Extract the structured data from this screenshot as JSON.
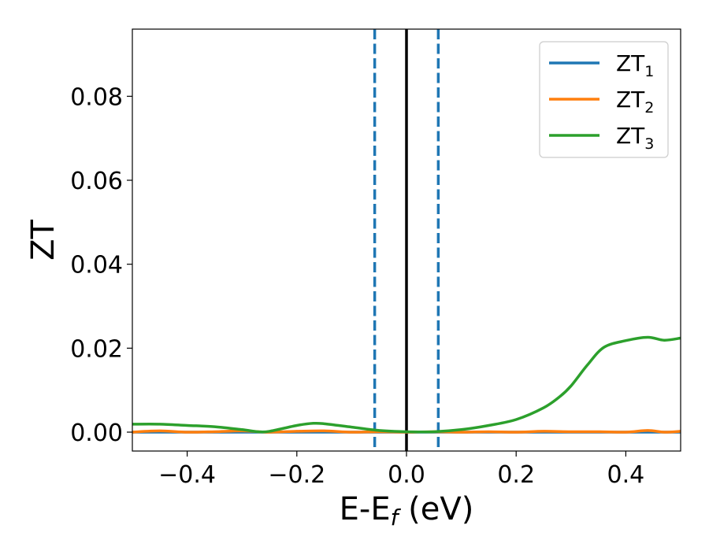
{
  "chart_data": {
    "type": "line",
    "xlabel": "E-E",
    "xlabel_sub": "f",
    "xlabel_unit": " (eV)",
    "ylabel": "ZT",
    "xlim": [
      -0.5,
      0.5
    ],
    "ylim": [
      -0.0045,
      0.096
    ],
    "x_ticks": [
      -0.4,
      -0.2,
      0.0,
      0.2,
      0.4
    ],
    "x_tick_labels": [
      "−0.4",
      "−0.2",
      "0.0",
      "0.2",
      "0.4"
    ],
    "y_ticks": [
      0.0,
      0.02,
      0.04,
      0.06,
      0.08
    ],
    "y_tick_labels": [
      "0.00",
      "0.02",
      "0.04",
      "0.06",
      "0.08"
    ],
    "grid": false,
    "legend_position": "top-right",
    "series": [
      {
        "name": "ZT",
        "sub": "1",
        "color": "#1f77b4",
        "x": [
          -0.5,
          0.5
        ],
        "y": [
          0.0,
          0.0
        ]
      },
      {
        "name": "ZT",
        "sub": "2",
        "color": "#ff7f0e",
        "x": [
          -0.5,
          -0.45,
          -0.4,
          -0.35,
          -0.3,
          -0.25,
          -0.2,
          -0.15,
          -0.1,
          -0.05,
          0.0,
          0.05,
          0.1,
          0.15,
          0.2,
          0.25,
          0.3,
          0.35,
          0.4,
          0.44,
          0.47,
          0.5
        ],
        "y": [
          0.0,
          0.0003,
          0.0,
          0.0001,
          0.0003,
          0.0,
          0.0002,
          0.0003,
          0.0,
          0.0001,
          0.0,
          0.0001,
          0.0,
          0.0001,
          0.0,
          0.0002,
          0.0001,
          0.0001,
          0.0,
          0.0004,
          0.0,
          0.0002
        ]
      },
      {
        "name": "ZT",
        "sub": "3",
        "color": "#2ca02c",
        "x": [
          -0.5,
          -0.45,
          -0.4,
          -0.35,
          -0.3,
          -0.27,
          -0.25,
          -0.2,
          -0.17,
          -0.15,
          -0.1,
          -0.05,
          0.0,
          0.05,
          0.1,
          0.15,
          0.2,
          0.25,
          0.28,
          0.3,
          0.33,
          0.36,
          0.4,
          0.44,
          0.47,
          0.5
        ],
        "y": [
          0.0019,
          0.0019,
          0.0016,
          0.0013,
          0.0006,
          0.0001,
          0.0002,
          0.0016,
          0.0021,
          0.002,
          0.0012,
          0.0004,
          0.0001,
          0.0001,
          0.0006,
          0.0016,
          0.003,
          0.0058,
          0.0085,
          0.011,
          0.016,
          0.0202,
          0.0218,
          0.0226,
          0.0219,
          0.0224
        ]
      }
    ],
    "vertical_lines": [
      {
        "x": -0.058,
        "style": "dashed",
        "color": "#1f77b4"
      },
      {
        "x": 0.0,
        "style": "solid",
        "color": "#000000"
      },
      {
        "x": 0.058,
        "style": "dashed",
        "color": "#1f77b4"
      }
    ]
  }
}
